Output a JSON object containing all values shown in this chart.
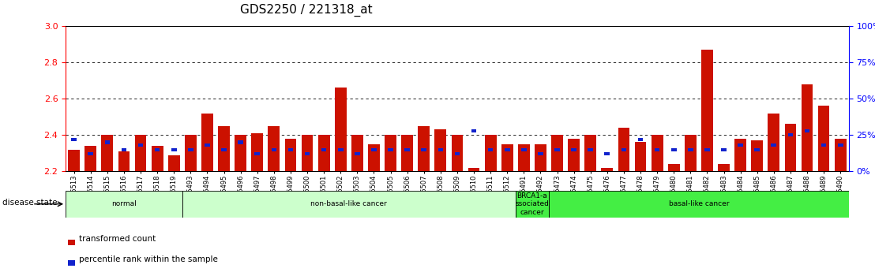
{
  "title": "GDS2250 / 221318_at",
  "samples": [
    "GSM85513",
    "GSM85514",
    "GSM85515",
    "GSM85516",
    "GSM85517",
    "GSM85518",
    "GSM85519",
    "GSM85493",
    "GSM85494",
    "GSM85495",
    "GSM85496",
    "GSM85497",
    "GSM85498",
    "GSM85499",
    "GSM85500",
    "GSM85501",
    "GSM85502",
    "GSM85503",
    "GSM85504",
    "GSM85505",
    "GSM85506",
    "GSM85507",
    "GSM85508",
    "GSM85509",
    "GSM85510",
    "GSM85511",
    "GSM85512",
    "GSM85491",
    "GSM85492",
    "GSM85473",
    "GSM85474",
    "GSM85475",
    "GSM85476",
    "GSM85477",
    "GSM85478",
    "GSM85479",
    "GSM85480",
    "GSM85481",
    "GSM85482",
    "GSM85483",
    "GSM85484",
    "GSM85485",
    "GSM85486",
    "GSM85487",
    "GSM85488",
    "GSM85489",
    "GSM85490"
  ],
  "transformed_count": [
    2.32,
    2.34,
    2.4,
    2.31,
    2.4,
    2.34,
    2.29,
    2.4,
    2.52,
    2.45,
    2.4,
    2.41,
    2.45,
    2.38,
    2.4,
    2.4,
    2.66,
    2.4,
    2.35,
    2.4,
    2.4,
    2.45,
    2.43,
    2.4,
    2.22,
    2.4,
    2.35,
    2.35,
    2.35,
    2.4,
    2.38,
    2.4,
    2.22,
    2.44,
    2.36,
    2.4,
    2.24,
    2.4,
    2.87,
    2.24,
    2.38,
    2.37,
    2.52,
    2.46,
    2.68,
    2.56,
    2.38
  ],
  "percentile_val": [
    22,
    12,
    20,
    15,
    18,
    15,
    15,
    15,
    18,
    15,
    20,
    12,
    15,
    15,
    12,
    15,
    15,
    12,
    15,
    15,
    15,
    15,
    15,
    12,
    28,
    15,
    15,
    15,
    12,
    15,
    15,
    15,
    12,
    15,
    22,
    15,
    15,
    15,
    15,
    15,
    18,
    15,
    18,
    25,
    28,
    18,
    18
  ],
  "disease_groups": [
    {
      "label": "normal",
      "start": 0,
      "end": 7,
      "color": "#ccffcc"
    },
    {
      "label": "non-basal-like cancer",
      "start": 7,
      "end": 27,
      "color": "#ccffcc"
    },
    {
      "label": "BRCA1-a\nssociated\ncancer",
      "start": 27,
      "end": 29,
      "color": "#44ee44"
    },
    {
      "label": "basal-like cancer",
      "start": 29,
      "end": 47,
      "color": "#44ee44"
    }
  ],
  "ylim_left": [
    2.2,
    3.0
  ],
  "yticks_left": [
    2.2,
    2.4,
    2.6,
    2.8,
    3.0
  ],
  "ylim_right": [
    0,
    100
  ],
  "yticks_right": [
    0,
    25,
    50,
    75,
    100
  ],
  "bar_color": "#cc1100",
  "percentile_color": "#1122cc",
  "title_fontsize": 11,
  "tick_fontsize": 6.0,
  "label_fontsize": 7.5
}
